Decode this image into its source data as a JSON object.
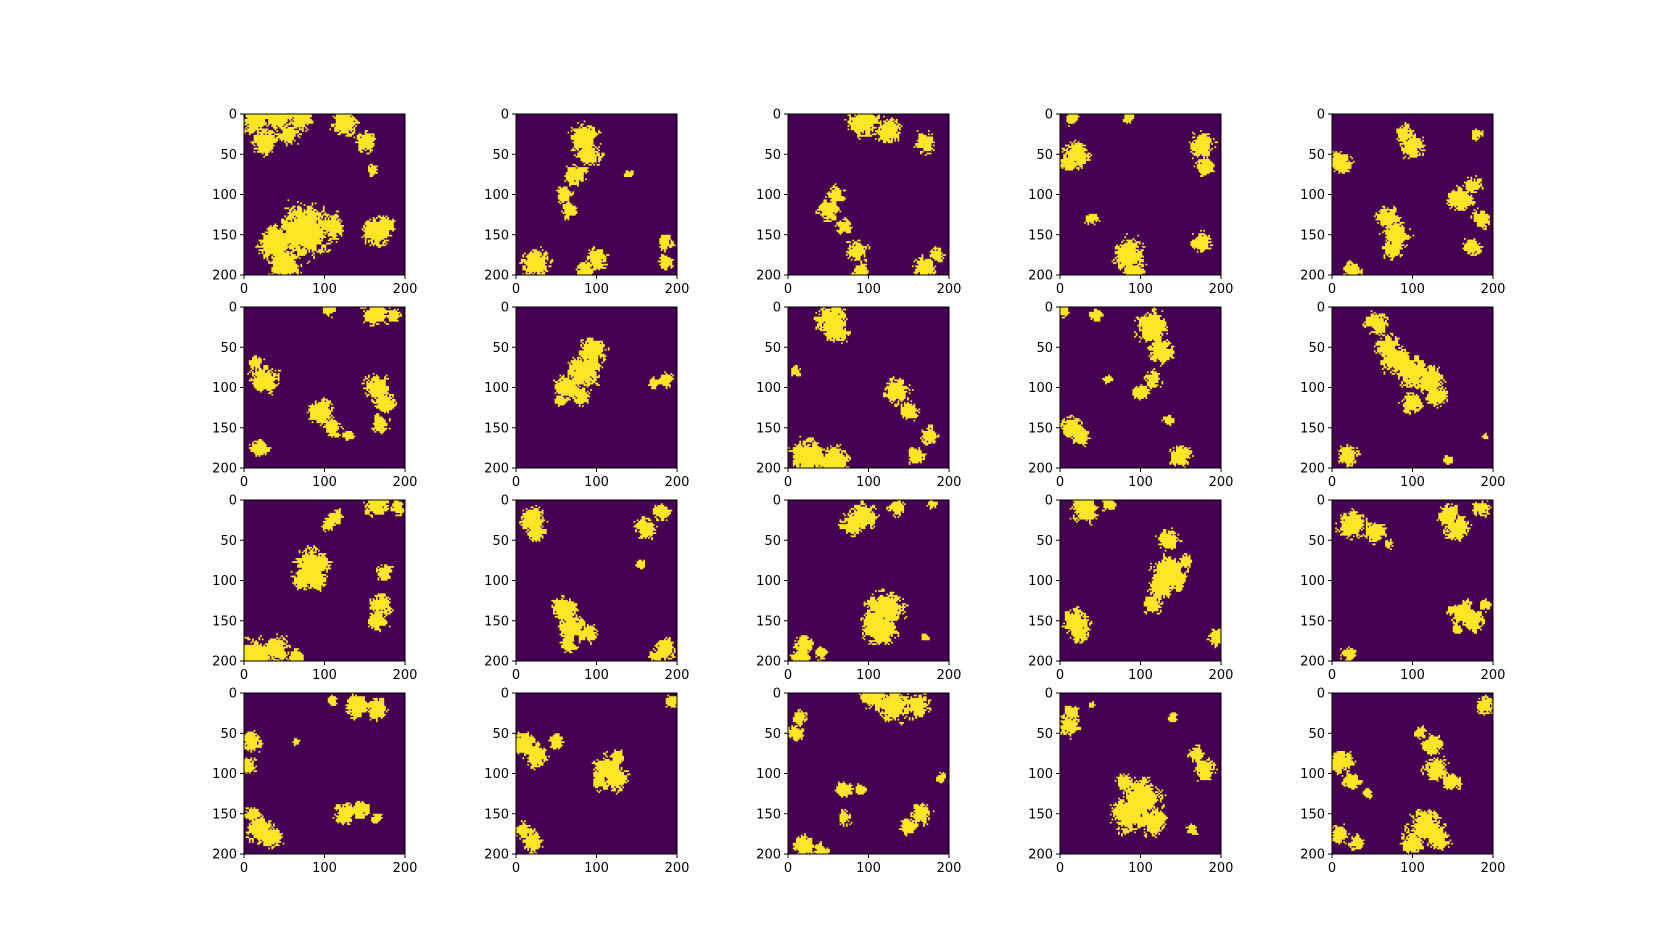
{
  "chart_data": {
    "type": "heatmap",
    "layout": {
      "rows": 4,
      "cols": 5
    },
    "title": "",
    "xlabel": "",
    "ylabel": "",
    "x_range": [
      0,
      200
    ],
    "y_range": [
      0,
      200
    ],
    "y_axis_inverted": true,
    "x_ticks": [
      "0",
      "100",
      "200"
    ],
    "y_ticks": [
      "0",
      "50",
      "100",
      "150",
      "200"
    ],
    "grid": false,
    "legend": "none",
    "colors": {
      "background": "#440154",
      "foreground": "#fde725"
    },
    "value_type": "binary",
    "panels": [
      {
        "blobs": [
          [
            15,
            5,
            18
          ],
          [
            45,
            3,
            14
          ],
          [
            70,
            3,
            15
          ],
          [
            25,
            35,
            14
          ],
          [
            55,
            25,
            12
          ],
          [
            125,
            10,
            14
          ],
          [
            150,
            35,
            12
          ],
          [
            160,
            70,
            7
          ],
          [
            40,
            160,
            20
          ],
          [
            75,
            145,
            30
          ],
          [
            50,
            185,
            18
          ],
          [
            110,
            140,
            14
          ],
          [
            165,
            145,
            15
          ],
          [
            175,
            140,
            12
          ]
        ]
      },
      {
        "blobs": [
          [
            85,
            30,
            16
          ],
          [
            90,
            50,
            14
          ],
          [
            75,
            75,
            12
          ],
          [
            60,
            100,
            10
          ],
          [
            65,
            120,
            9
          ],
          [
            140,
            75,
            5
          ],
          [
            25,
            185,
            16
          ],
          [
            100,
            180,
            12
          ],
          [
            85,
            195,
            10
          ],
          [
            185,
            160,
            9
          ],
          [
            185,
            185,
            8
          ]
        ]
      },
      {
        "blobs": [
          [
            95,
            10,
            18
          ],
          [
            125,
            20,
            14
          ],
          [
            170,
            35,
            12
          ],
          [
            50,
            120,
            12
          ],
          [
            60,
            100,
            10
          ],
          [
            70,
            140,
            9
          ],
          [
            85,
            170,
            12
          ],
          [
            90,
            195,
            10
          ],
          [
            170,
            190,
            12
          ],
          [
            185,
            175,
            8
          ]
        ]
      },
      {
        "blobs": [
          [
            15,
            5,
            8
          ],
          [
            20,
            50,
            14
          ],
          [
            10,
            60,
            9
          ],
          [
            85,
            5,
            6
          ],
          [
            175,
            40,
            14
          ],
          [
            180,
            65,
            10
          ],
          [
            40,
            130,
            7
          ],
          [
            85,
            175,
            18
          ],
          [
            90,
            195,
            12
          ],
          [
            175,
            160,
            12
          ]
        ]
      },
      {
        "blobs": [
          [
            10,
            60,
            12
          ],
          [
            100,
            40,
            14
          ],
          [
            90,
            25,
            10
          ],
          [
            180,
            25,
            7
          ],
          [
            70,
            130,
            13
          ],
          [
            80,
            150,
            15
          ],
          [
            75,
            170,
            10
          ],
          [
            160,
            105,
            14
          ],
          [
            175,
            90,
            10
          ],
          [
            185,
            130,
            10
          ],
          [
            175,
            165,
            10
          ],
          [
            25,
            195,
            10
          ]
        ]
      },
      {
        "blobs": [
          [
            105,
            3,
            8
          ],
          [
            165,
            5,
            16
          ],
          [
            185,
            10,
            8
          ],
          [
            25,
            90,
            16
          ],
          [
            15,
            70,
            8
          ],
          [
            95,
            130,
            14
          ],
          [
            110,
            150,
            10
          ],
          [
            165,
            100,
            14
          ],
          [
            175,
            120,
            12
          ],
          [
            170,
            145,
            10
          ],
          [
            20,
            175,
            10
          ],
          [
            130,
            160,
            6
          ]
        ]
      },
      {
        "blobs": [
          [
            95,
            55,
            16
          ],
          [
            85,
            80,
            18
          ],
          [
            65,
            100,
            15
          ],
          [
            55,
            115,
            8
          ],
          [
            80,
            110,
            10
          ],
          [
            185,
            90,
            9
          ],
          [
            170,
            95,
            6
          ]
        ]
      },
      {
        "blobs": [
          [
            55,
            15,
            18
          ],
          [
            60,
            30,
            14
          ],
          [
            10,
            80,
            6
          ],
          [
            135,
            105,
            14
          ],
          [
            150,
            130,
            10
          ],
          [
            175,
            160,
            10
          ],
          [
            160,
            185,
            10
          ],
          [
            25,
            185,
            20
          ],
          [
            55,
            193,
            18
          ]
        ]
      },
      {
        "blobs": [
          [
            5,
            5,
            6
          ],
          [
            45,
            10,
            7
          ],
          [
            15,
            150,
            12
          ],
          [
            25,
            160,
            10
          ],
          [
            115,
            25,
            18
          ],
          [
            125,
            55,
            14
          ],
          [
            115,
            90,
            10
          ],
          [
            100,
            105,
            9
          ],
          [
            135,
            140,
            6
          ],
          [
            150,
            185,
            12
          ],
          [
            60,
            90,
            5
          ]
        ]
      },
      {
        "blobs": [
          [
            55,
            20,
            12
          ],
          [
            70,
            50,
            14
          ],
          [
            80,
            65,
            16
          ],
          [
            100,
            80,
            18
          ],
          [
            120,
            90,
            16
          ],
          [
            130,
            110,
            12
          ],
          [
            100,
            120,
            12
          ],
          [
            20,
            185,
            12
          ],
          [
            190,
            160,
            4
          ],
          [
            145,
            190,
            5
          ]
        ]
      },
      {
        "blobs": [
          [
            85,
            80,
            18
          ],
          [
            75,
            95,
            14
          ],
          [
            90,
            100,
            12
          ],
          [
            105,
            30,
            7
          ],
          [
            115,
            20,
            8
          ],
          [
            165,
            5,
            14
          ],
          [
            190,
            10,
            9
          ],
          [
            175,
            90,
            9
          ],
          [
            170,
            130,
            12
          ],
          [
            165,
            150,
            12
          ],
          [
            15,
            195,
            20
          ],
          [
            40,
            185,
            15
          ],
          [
            65,
            195,
            10
          ]
        ]
      },
      {
        "blobs": [
          [
            20,
            25,
            14
          ],
          [
            25,
            40,
            10
          ],
          [
            160,
            35,
            12
          ],
          [
            180,
            15,
            10
          ],
          [
            155,
            80,
            5
          ],
          [
            60,
            135,
            14
          ],
          [
            70,
            160,
            15
          ],
          [
            90,
            165,
            10
          ],
          [
            65,
            180,
            9
          ],
          [
            185,
            185,
            12
          ],
          [
            175,
            195,
            8
          ]
        ]
      },
      {
        "blobs": [
          [
            95,
            20,
            14
          ],
          [
            80,
            30,
            12
          ],
          [
            135,
            10,
            9
          ],
          [
            180,
            5,
            6
          ],
          [
            120,
            135,
            20
          ],
          [
            115,
            160,
            18
          ],
          [
            110,
            150,
            14
          ],
          [
            20,
            180,
            12
          ],
          [
            15,
            195,
            10
          ],
          [
            40,
            190,
            8
          ],
          [
            170,
            170,
            5
          ]
        ]
      },
      {
        "blobs": [
          [
            30,
            10,
            16
          ],
          [
            60,
            5,
            8
          ],
          [
            135,
            50,
            12
          ],
          [
            135,
            90,
            18
          ],
          [
            125,
            110,
            14
          ],
          [
            145,
            100,
            12
          ],
          [
            115,
            130,
            10
          ],
          [
            155,
            75,
            8
          ],
          [
            20,
            150,
            14
          ],
          [
            25,
            165,
            10
          ],
          [
            195,
            170,
            10
          ]
        ]
      },
      {
        "blobs": [
          [
            25,
            30,
            16
          ],
          [
            55,
            40,
            12
          ],
          [
            70,
            55,
            6
          ],
          [
            145,
            20,
            12
          ],
          [
            155,
            35,
            14
          ],
          [
            185,
            10,
            10
          ],
          [
            160,
            140,
            14
          ],
          [
            175,
            150,
            12
          ],
          [
            190,
            130,
            7
          ],
          [
            155,
            160,
            6
          ],
          [
            20,
            190,
            8
          ]
        ]
      },
      {
        "blobs": [
          [
            10,
            60,
            12
          ],
          [
            5,
            90,
            10
          ],
          [
            20,
            170,
            15
          ],
          [
            35,
            180,
            12
          ],
          [
            10,
            150,
            8
          ],
          [
            110,
            10,
            6
          ],
          [
            140,
            15,
            15
          ],
          [
            165,
            20,
            12
          ],
          [
            125,
            150,
            12
          ],
          [
            145,
            145,
            10
          ],
          [
            165,
            155,
            6
          ],
          [
            65,
            60,
            4
          ]
        ]
      },
      {
        "blobs": [
          [
            10,
            65,
            14
          ],
          [
            25,
            80,
            12
          ],
          [
            50,
            60,
            8
          ],
          [
            20,
            185,
            12
          ],
          [
            10,
            170,
            10
          ],
          [
            115,
            95,
            16
          ],
          [
            125,
            105,
            14
          ],
          [
            105,
            110,
            10
          ],
          [
            125,
            80,
            9
          ],
          [
            195,
            10,
            8
          ]
        ]
      },
      {
        "blobs": [
          [
            10,
            50,
            9
          ],
          [
            15,
            30,
            8
          ],
          [
            130,
            15,
            20
          ],
          [
            105,
            5,
            15
          ],
          [
            160,
            15,
            14
          ],
          [
            70,
            120,
            10
          ],
          [
            90,
            120,
            6
          ],
          [
            70,
            155,
            8
          ],
          [
            165,
            150,
            12
          ],
          [
            150,
            165,
            10
          ],
          [
            20,
            190,
            12
          ],
          [
            40,
            195,
            8
          ],
          [
            190,
            105,
            6
          ]
        ]
      },
      {
        "blobs": [
          [
            10,
            40,
            12
          ],
          [
            15,
            25,
            8
          ],
          [
            40,
            15,
            4
          ],
          [
            100,
            130,
            22
          ],
          [
            85,
            150,
            20
          ],
          [
            115,
            160,
            14
          ],
          [
            80,
            110,
            10
          ],
          [
            180,
            95,
            12
          ],
          [
            170,
            75,
            9
          ],
          [
            165,
            170,
            6
          ],
          [
            140,
            30,
            5
          ]
        ]
      },
      {
        "blobs": [
          [
            190,
            15,
            10
          ],
          [
            10,
            85,
            14
          ],
          [
            25,
            110,
            10
          ],
          [
            45,
            125,
            6
          ],
          [
            125,
            65,
            12
          ],
          [
            130,
            95,
            14
          ],
          [
            150,
            110,
            10
          ],
          [
            110,
            50,
            7
          ],
          [
            115,
            165,
            18
          ],
          [
            130,
            180,
            14
          ],
          [
            100,
            185,
            12
          ],
          [
            10,
            175,
            10
          ],
          [
            30,
            185,
            8
          ]
        ]
      }
    ]
  }
}
